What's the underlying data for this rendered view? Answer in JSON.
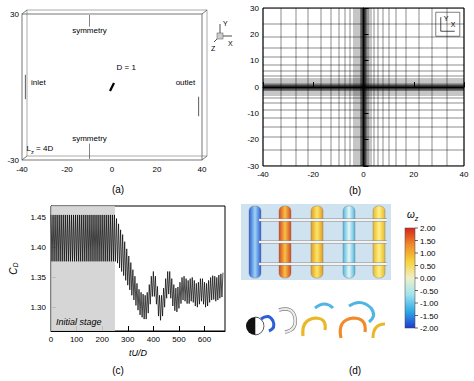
{
  "diagram_a": {
    "panel_label": "(a)",
    "type": "diagram",
    "texts": {
      "top": "symmetry",
      "inlet": "inlet",
      "body": "D = 1",
      "outlet": "outlet",
      "bottom": "symmetry",
      "span": {
        "base": "L",
        "sub": "z",
        "rest": " = 4D"
      }
    },
    "xlim": [
      -40,
      40
    ],
    "xticks": [
      -40,
      -20,
      0,
      20,
      40
    ],
    "ylim": [
      -30,
      30
    ],
    "yticks": [
      30,
      -30
    ],
    "axis_letters": {
      "y": "Y",
      "z": "Z",
      "x": "X"
    }
  },
  "chart_data": [
    {
      "panel_label": "(b)",
      "type": "mesh",
      "color": "#000000",
      "xlim": [
        -40,
        40
      ],
      "xticks": [
        -40,
        -20,
        0,
        20,
        40
      ],
      "ylim": [
        -30,
        30
      ],
      "yticks": [
        -30,
        -20,
        -10,
        0,
        10,
        20,
        30
      ],
      "mesh_x": [
        -40,
        -33,
        -27,
        -22,
        -17,
        -13,
        -10,
        -7.5,
        -5.5,
        -4,
        -3,
        -2.2,
        -1.6,
        -1.2,
        -0.9,
        -0.7,
        -0.55,
        -0.45,
        -0.35,
        -0.25,
        -0.15,
        -0.05,
        0.05,
        0.15,
        0.25,
        0.35,
        0.45,
        0.55,
        0.7,
        0.9,
        1.2,
        1.6,
        2.2,
        3,
        4,
        5.5,
        7.5,
        10,
        13,
        17,
        22,
        27,
        33,
        40
      ],
      "mesh_y": [
        -30,
        -24,
        -19,
        -15,
        -11.5,
        -8.5,
        -6,
        -4.2,
        -3,
        -2.2,
        -1.6,
        -1.2,
        -0.9,
        -0.7,
        -0.55,
        -0.45,
        -0.35,
        -0.25,
        -0.15,
        -0.05,
        0.05,
        0.15,
        0.25,
        0.35,
        0.45,
        0.55,
        0.7,
        0.9,
        1.2,
        1.6,
        2.2,
        3,
        4.2,
        6,
        8.5,
        11.5,
        15,
        19,
        24,
        30
      ],
      "axis_letters": {
        "y": "Y",
        "x": "X"
      }
    },
    {
      "panel_label": "(c)",
      "type": "line",
      "color": "#000000",
      "xlabel": "tU/D",
      "ylabel": {
        "base": "C",
        "sub": "D"
      },
      "xlim": [
        0,
        680
      ],
      "xticks": [
        0,
        100,
        200,
        300,
        400,
        500,
        600
      ],
      "ylim": [
        1.26,
        1.47
      ],
      "yticks": [
        {
          "value": 1.3,
          "label": "1.30"
        },
        {
          "value": 1.35,
          "label": "1.35"
        },
        {
          "value": 1.4,
          "label": "1.40"
        },
        {
          "value": 1.45,
          "label": "1.45"
        }
      ],
      "annotation": {
        "label": "Initial stage",
        "x": [
          0,
          250
        ],
        "color": "#d2d2d2"
      },
      "x": [
        0,
        4,
        8,
        12,
        16,
        20,
        24,
        28,
        32,
        36,
        40,
        44,
        48,
        52,
        56,
        60,
        64,
        68,
        72,
        76,
        80,
        84,
        88,
        92,
        96,
        100,
        104,
        108,
        112,
        116,
        120,
        124,
        128,
        132,
        136,
        140,
        144,
        148,
        152,
        156,
        160,
        164,
        168,
        172,
        176,
        180,
        184,
        188,
        192,
        196,
        200,
        204,
        208,
        212,
        216,
        220,
        224,
        228,
        232,
        236,
        240,
        244,
        248,
        252,
        256,
        260,
        264,
        268,
        272,
        276,
        280,
        284,
        288,
        292,
        296,
        300,
        304,
        308,
        312,
        316,
        320,
        324,
        328,
        332,
        336,
        340,
        344,
        348,
        352,
        356,
        360,
        364,
        368,
        372,
        376,
        380,
        384,
        388,
        392,
        396,
        400,
        404,
        408,
        412,
        416,
        420,
        424,
        428,
        432,
        436,
        440,
        444,
        448,
        452,
        456,
        460,
        464,
        468,
        472,
        476,
        480,
        484,
        488,
        492,
        496,
        500,
        504,
        508,
        512,
        516,
        520,
        524,
        528,
        532,
        536,
        540,
        544,
        548,
        552,
        556,
        560,
        564,
        568,
        572,
        576,
        580,
        584,
        588,
        592,
        596,
        600,
        604,
        608,
        612,
        616,
        620,
        624,
        628,
        632,
        636,
        640,
        644,
        648,
        652,
        656,
        660,
        664,
        668,
        672
      ],
      "values": [
        1.455,
        1.377,
        1.455,
        1.377,
        1.455,
        1.377,
        1.455,
        1.377,
        1.455,
        1.377,
        1.455,
        1.377,
        1.455,
        1.377,
        1.455,
        1.377,
        1.455,
        1.377,
        1.455,
        1.377,
        1.455,
        1.377,
        1.455,
        1.377,
        1.455,
        1.377,
        1.455,
        1.377,
        1.455,
        1.377,
        1.455,
        1.377,
        1.455,
        1.377,
        1.455,
        1.377,
        1.455,
        1.377,
        1.455,
        1.377,
        1.455,
        1.377,
        1.455,
        1.377,
        1.455,
        1.377,
        1.455,
        1.377,
        1.455,
        1.377,
        1.455,
        1.377,
        1.455,
        1.377,
        1.455,
        1.377,
        1.455,
        1.377,
        1.455,
        1.377,
        1.455,
        1.377,
        1.455,
        1.377,
        1.449,
        1.374,
        1.44,
        1.366,
        1.43,
        1.36,
        1.422,
        1.353,
        1.41,
        1.345,
        1.398,
        1.337,
        1.386,
        1.329,
        1.375,
        1.32,
        1.363,
        1.312,
        1.352,
        1.303,
        1.34,
        1.295,
        1.33,
        1.287,
        1.325,
        1.283,
        1.322,
        1.28,
        1.32,
        1.28,
        1.325,
        1.29,
        1.338,
        1.305,
        1.352,
        1.318,
        1.36,
        1.318,
        1.352,
        1.305,
        1.335,
        1.285,
        1.32,
        1.278,
        1.32,
        1.285,
        1.332,
        1.3,
        1.348,
        1.315,
        1.36,
        1.322,
        1.36,
        1.315,
        1.348,
        1.302,
        1.338,
        1.294,
        1.332,
        1.292,
        1.334,
        1.298,
        1.342,
        1.306,
        1.35,
        1.312,
        1.352,
        1.31,
        1.348,
        1.306,
        1.345,
        1.306,
        1.348,
        1.31,
        1.35,
        1.308,
        1.345,
        1.302,
        1.34,
        1.3,
        1.342,
        1.305,
        1.348,
        1.31,
        1.348,
        1.305,
        1.342,
        1.3,
        1.34,
        1.302,
        1.345,
        1.308,
        1.35,
        1.312,
        1.353,
        1.313,
        1.352,
        1.31,
        1.35,
        1.312,
        1.354,
        1.315,
        1.356,
        1.317,
        1.358
      ]
    }
  ],
  "image_d": {
    "panel_label": "(d)",
    "type": "image",
    "colorbar": {
      "label": {
        "base": "ω",
        "sub": "z"
      },
      "range": [
        -2,
        2
      ],
      "ticks": [
        {
          "value": 2,
          "label": "2.00"
        },
        {
          "value": 1.5,
          "label": "1.50"
        },
        {
          "value": 1,
          "label": "1.00"
        },
        {
          "value": 0.5,
          "label": "0.50"
        },
        {
          "value": 0,
          "label": "0.00"
        },
        {
          "value": -0.5,
          "label": "-0.50"
        },
        {
          "value": -1,
          "label": "-1.00"
        },
        {
          "value": -1.5,
          "label": "-1.50"
        },
        {
          "value": -2,
          "label": "-2.00"
        }
      ],
      "colors": [
        "#1f3ccf",
        "#2fa9e6",
        "#9fe3ef",
        "#f0f0c8",
        "#f7d23a",
        "#f08a2a",
        "#d7261e"
      ]
    }
  }
}
